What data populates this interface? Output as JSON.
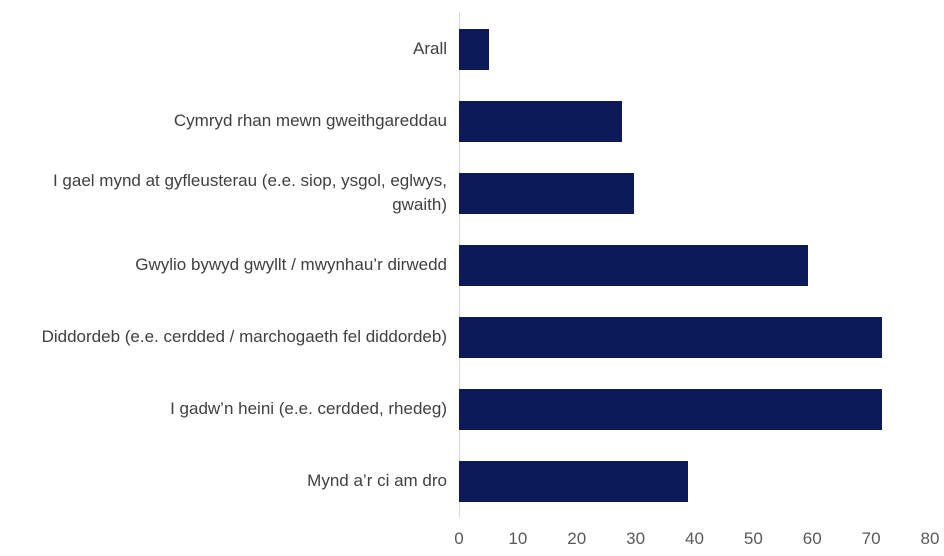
{
  "chart_data": {
    "type": "bar",
    "orientation": "horizontal",
    "categories": [
      "Arall",
      "Cymryd rhan mewn gweithgareddau",
      "I gael mynd at gyfleusterau (e.e. siop, ysgol, eglwys, gwaith)",
      "Gwylio bywyd gwyllt / mwynhau’r dirwedd",
      "Diddordeb (e.e. cerdded / marchogaeth fel diddordeb)",
      "I gadw’n heini (e.e. cerdded, rhedeg)",
      "Mynd a’r ci am dro"
    ],
    "values": [
      5.1,
      27.7,
      29.7,
      59.3,
      71.8,
      71.8,
      38.9
    ],
    "color": "#0c1a5a",
    "xlim": [
      0,
      80
    ],
    "xticks": [
      0,
      10,
      20,
      30,
      40,
      50,
      60,
      70,
      80
    ],
    "grid": false
  }
}
